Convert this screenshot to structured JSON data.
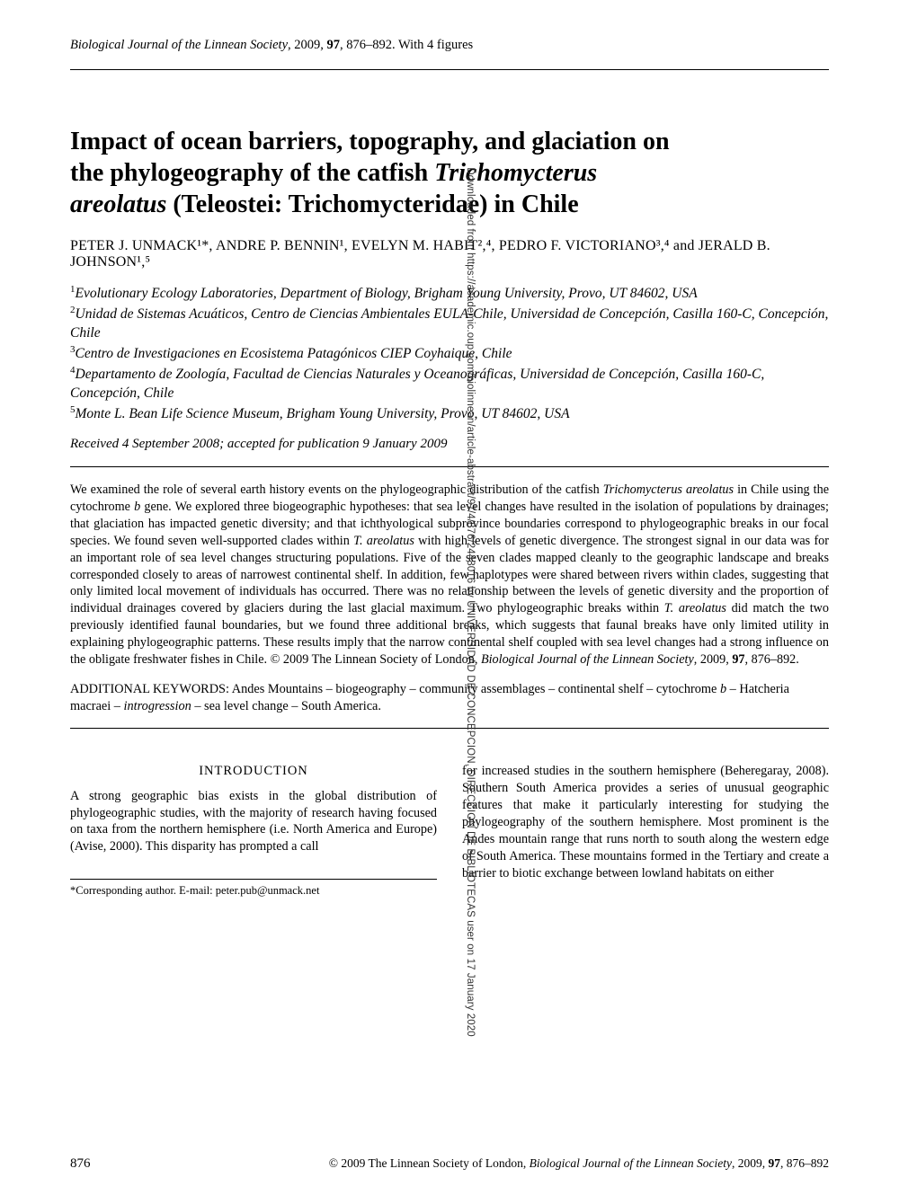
{
  "running_header": {
    "journal": "Biological Journal of the Linnean Society",
    "year": "2009",
    "volume": "97",
    "pages": "876–892. With 4 figures"
  },
  "title": {
    "line1": "Impact of ocean barriers, topography, and glaciation on",
    "line2_a": "the phylogeography of the catfish ",
    "line2_species": "Trichomycterus",
    "line3_species": "areolatus",
    "line3_b": " (Teleostei: Trichomycteridae) in Chile"
  },
  "authors": "PETER J. UNMACK¹*, ANDRE P. BENNIN¹, EVELYN M. HABIT²,⁴, PEDRO F. VICTORIANO³,⁴ and JERALD B. JOHNSON¹,⁵",
  "affiliations": [
    {
      "num": "1",
      "text": "Evolutionary Ecology Laboratories, Department of Biology, Brigham Young University, Provo, UT 84602, USA"
    },
    {
      "num": "2",
      "text": "Unidad de Sistemas Acuáticos, Centro de Ciencias Ambientales EULA-Chile, Universidad de Concepción, Casilla 160-C, Concepción, Chile"
    },
    {
      "num": "3",
      "text": "Centro de Investigaciones en Ecosistema Patagónicos CIEP Coyhaique, Chile"
    },
    {
      "num": "4",
      "text": "Departamento de Zoología, Facultad de Ciencias Naturales y Oceanográficas, Universidad de Concepción, Casilla 160-C, Concepción, Chile"
    },
    {
      "num": "5",
      "text": "Monte L. Bean Life Science Museum, Brigham Young University, Provo, UT 84602, USA"
    }
  ],
  "received": "Received 4 September 2008; accepted for publication 9 January 2009",
  "abstract": {
    "p1a": "We examined the role of several earth history events on the phylogeographic distribution of the catfish ",
    "p1b": "Trichomycterus areolatus",
    "p1c": " in Chile using the cytochrome ",
    "p1d": "b",
    "p1e": " gene. We explored three biogeographic hypotheses: that sea level changes have resulted in the isolation of populations by drainages; that glaciation has impacted genetic diversity; and that ichthyological subprovince boundaries correspond to phylogeographic breaks in our focal species. We found seven well-supported clades within ",
    "p1f": "T. areolatus",
    "p1g": " with high levels of genetic divergence. The strongest signal in our data was for an important role of sea level changes structuring populations. Five of the seven clades mapped cleanly to the geographic landscape and breaks corresponded closely to areas of narrowest continental shelf. In addition, few haplotypes were shared between rivers within clades, suggesting that only limited local movement of individuals has occurred. There was no relationship between the levels of genetic diversity and the proportion of individual drainages covered by glaciers during the last glacial maximum. Two phylogeographic breaks within ",
    "p1h": "T. areolatus",
    "p1i": " did match the two previously identified faunal boundaries, but we found three additional breaks, which suggests that faunal breaks have only limited utility in explaining phylogeographic patterns. These results imply that the narrow continental shelf coupled with sea level changes had a strong influence on the obligate freshwater fishes in Chile.  © 2009 The Linnean Society of London, ",
    "p1j": "Biological Journal of the Linnean Society",
    "p1k": ", 2009, ",
    "p1l": "97",
    "p1m": ", 876–892."
  },
  "keywords": {
    "prefix": "ADDITIONAL KEYWORDS: ",
    "body_a": "Andes Mountains – biogeography – community assemblages – continental shelf – cytochrome ",
    "body_b": "b",
    "body_c": " – Hatcheria macraei – ",
    "body_d": "introgression",
    "body_e": " – sea level change – South America."
  },
  "intro": {
    "heading": "INTRODUCTION",
    "left": "A strong geographic bias exists in the global distribution of phylogeographic studies, with the majority of research having focused on taxa from the northern hemisphere (i.e. North America and Europe) (Avise, 2000). This disparity has prompted a call",
    "right": "for increased studies in the southern hemisphere (Beheregaray, 2008). Southern South America provides a series of unusual geographic features that make it particularly interesting for studying the phylogeography of the southern hemisphere. Most prominent is the Andes mountain range that runs north to south along the western edge of South America. These mountains formed in the Tertiary and create a barrier to biotic exchange between lowland habitats on either"
  },
  "corresponding": "*Corresponding author. E-mail: peter.pub@unmack.net",
  "footer": {
    "pagenum": "876",
    "copyright_a": "© 2009 The Linnean Society of London, ",
    "copyright_b": "Biological Journal of the Linnean Society",
    "copyright_c": ", 2009, ",
    "copyright_d": "97",
    "copyright_e": ", 876–892"
  },
  "side": "Downloaded from https://academic.oup.com/biolinnean/article-abstract/97/4/876/2448016 by UNIVERSIDAD DE CONCEPCION, DIRECCION DE BIBLIOTECAS user on 17 January 2020"
}
